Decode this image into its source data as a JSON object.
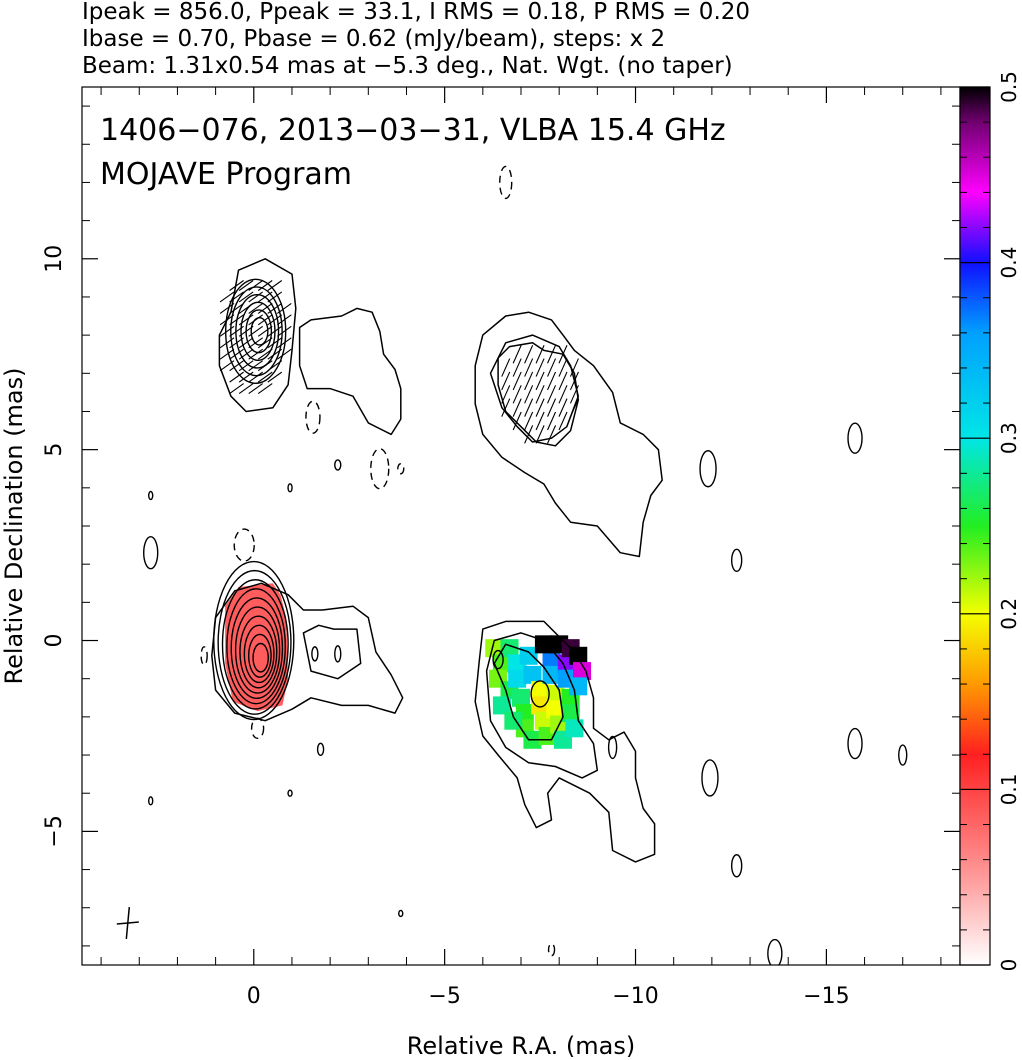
{
  "header": {
    "line1": "Ipeak = 856.0, Ppeak = 33.1, I RMS = 0.18, P RMS = 0.20",
    "line2": "Ibase = 0.70, Pbase = 0.62 (mJy/beam), steps: x 2",
    "line3": "Beam: 1.31x0.54 mas at −5.3 deg., Nat. Wgt. (no taper)"
  },
  "chart_data": {
    "type": "heatmap",
    "title": "1406−076, 2013−03−31, VLBA 15.4 GHz",
    "subtitle": "MOJAVE Program",
    "xlabel": "Relative R.A. (mas)",
    "ylabel": "Relative Declination (mas)",
    "xlim": [
      4.5,
      -18.5
    ],
    "ylim": [
      -8.5,
      14.5
    ],
    "x_ticks": [
      {
        "value": 0,
        "label": "0"
      },
      {
        "value": -5,
        "label": "−5"
      },
      {
        "value": -10,
        "label": "−10"
      },
      {
        "value": -15,
        "label": "−15"
      }
    ],
    "y_ticks": [
      {
        "value": -5,
        "label": "−5"
      },
      {
        "value": 0,
        "label": "0"
      },
      {
        "value": 5,
        "label": "5"
      },
      {
        "value": 10,
        "label": "10"
      }
    ],
    "colorbar": {
      "range": [
        0,
        0.5
      ],
      "ticks": [
        {
          "value": 0,
          "label": "0"
        },
        {
          "value": 0.1,
          "label": "0.1"
        },
        {
          "value": 0.2,
          "label": "0.2"
        },
        {
          "value": 0.3,
          "label": "0.3"
        },
        {
          "value": 0.4,
          "label": "0.4"
        },
        {
          "value": 0.5,
          "label": "0.5"
        }
      ],
      "stops": [
        {
          "value": 0.0,
          "color": "#ffffff"
        },
        {
          "value": 0.05,
          "color": "#ff9a9a"
        },
        {
          "value": 0.12,
          "color": "#ff2020"
        },
        {
          "value": 0.16,
          "color": "#ff9a00"
        },
        {
          "value": 0.2,
          "color": "#f4ff00"
        },
        {
          "value": 0.25,
          "color": "#22ee22"
        },
        {
          "value": 0.3,
          "color": "#00e6e6"
        },
        {
          "value": 0.36,
          "color": "#00a0ff"
        },
        {
          "value": 0.4,
          "color": "#1010ff"
        },
        {
          "value": 0.44,
          "color": "#ff00ff"
        },
        {
          "value": 0.48,
          "color": "#700070"
        },
        {
          "value": 0.5,
          "color": "#000000"
        }
      ]
    },
    "components": [
      {
        "name": "core-total-intensity",
        "x": 0.0,
        "y": 0.0,
        "levels": 10
      },
      {
        "name": "core-polarized",
        "x": 0.0,
        "y": 8.0,
        "levels": 6
      },
      {
        "name": "jet-knot-total-intensity",
        "x": -7.5,
        "y": -1.4,
        "levels": 3
      },
      {
        "name": "jet-knot-polarized",
        "x": -7.5,
        "y": 6.8,
        "levels": 2
      }
    ],
    "beam": {
      "major_mas": 1.31,
      "minor_mas": 0.54,
      "pa_deg": -5.3
    }
  }
}
